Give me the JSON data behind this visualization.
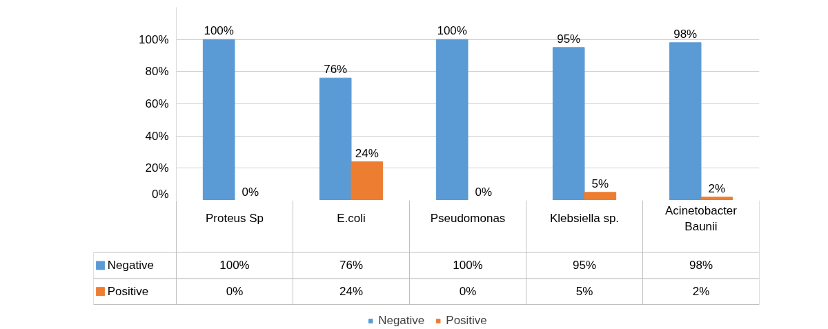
{
  "chart_data": {
    "type": "bar",
    "categories": [
      "Proteus Sp",
      "E.coli",
      "Pseudomonas",
      "Klebsiella sp.",
      "Acinetobacter Baunii"
    ],
    "series": [
      {
        "name": "Negative",
        "color": "#5b9bd5",
        "values": [
          100,
          76,
          100,
          95,
          98
        ],
        "value_labels": [
          "100%",
          "76%",
          "100%",
          "95%",
          "98%"
        ]
      },
      {
        "name": "Positive",
        "color": "#ed7d31",
        "values": [
          0,
          24,
          0,
          5,
          2
        ],
        "value_labels": [
          "0%",
          "24%",
          "0%",
          "5%",
          "2%"
        ]
      }
    ],
    "ylim": [
      0,
      120
    ],
    "yticks": [
      {
        "value": 0,
        "label": "0%"
      },
      {
        "value": 20,
        "label": "20%"
      },
      {
        "value": 40,
        "label": "40%"
      },
      {
        "value": 60,
        "label": "60%"
      },
      {
        "value": 80,
        "label": "80%"
      },
      {
        "value": 100,
        "label": "100%"
      }
    ],
    "grid": "y",
    "legend": "bottom"
  }
}
